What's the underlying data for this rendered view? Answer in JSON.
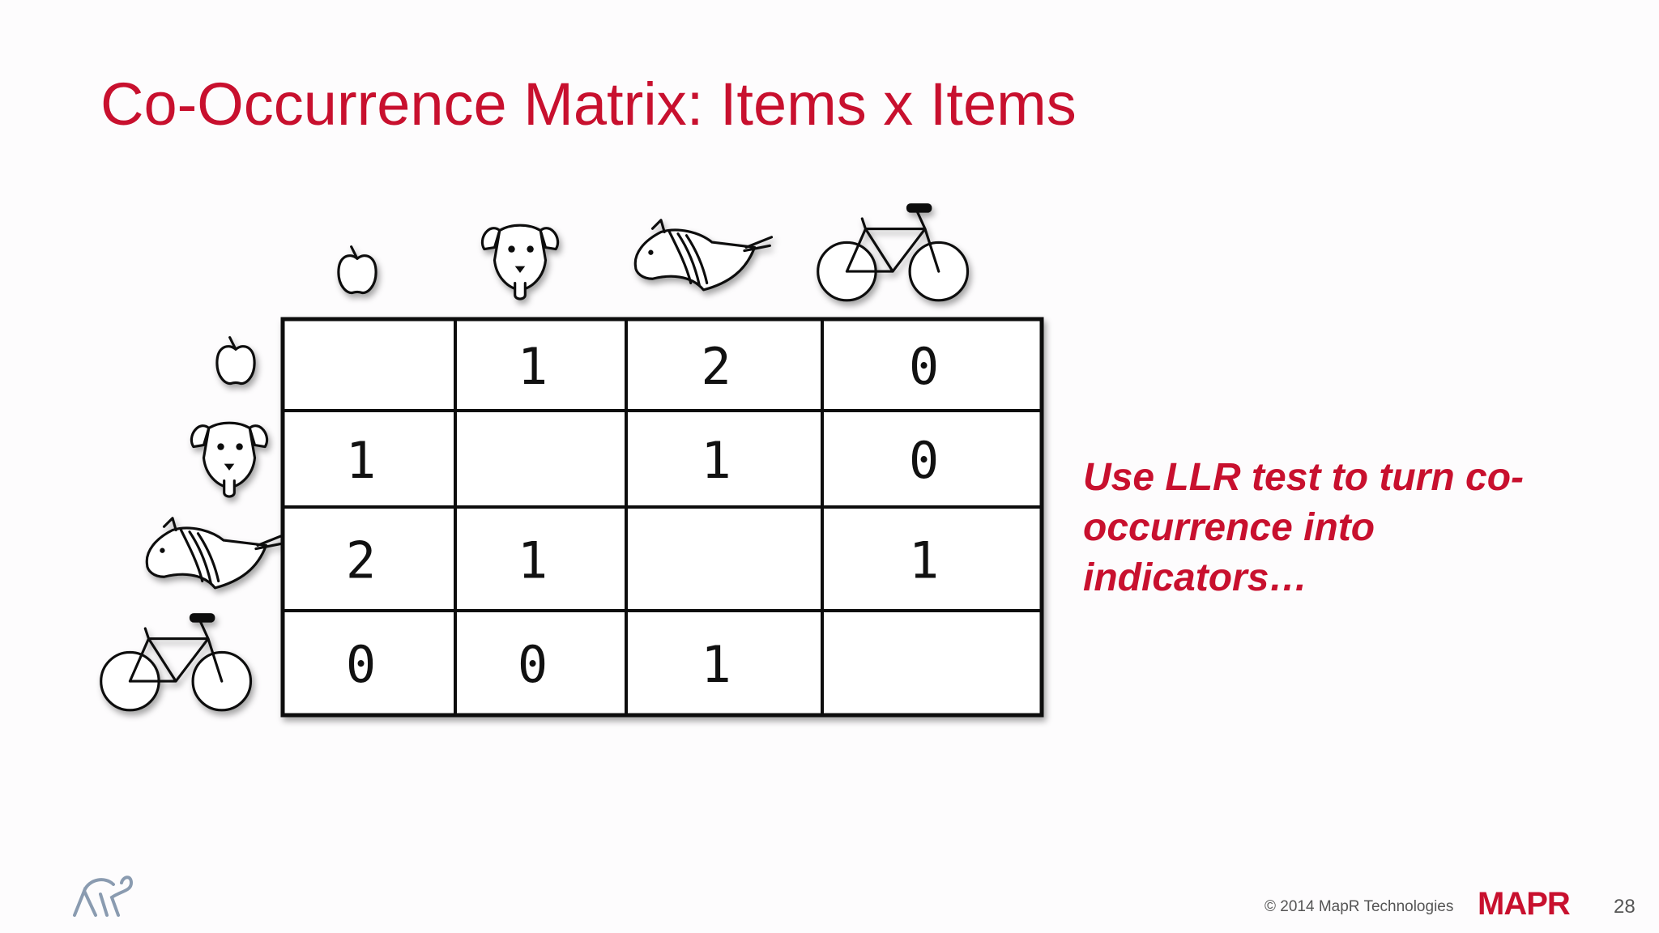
{
  "title": "Co-Occurrence Matrix: Items x Items",
  "matrix": {
    "rows": [
      [
        null,
        1,
        2,
        0
      ],
      [
        1,
        null,
        1,
        0
      ],
      [
        2,
        1,
        null,
        1
      ],
      [
        0,
        0,
        1,
        null
      ]
    ]
  },
  "note_lines": [
    "Use LLR test to turn co-",
    "occurrence into",
    "indicators…"
  ],
  "footer": {
    "copyright": "© 2014 MapR Technologies",
    "logo": "MAPR",
    "page": 28
  }
}
